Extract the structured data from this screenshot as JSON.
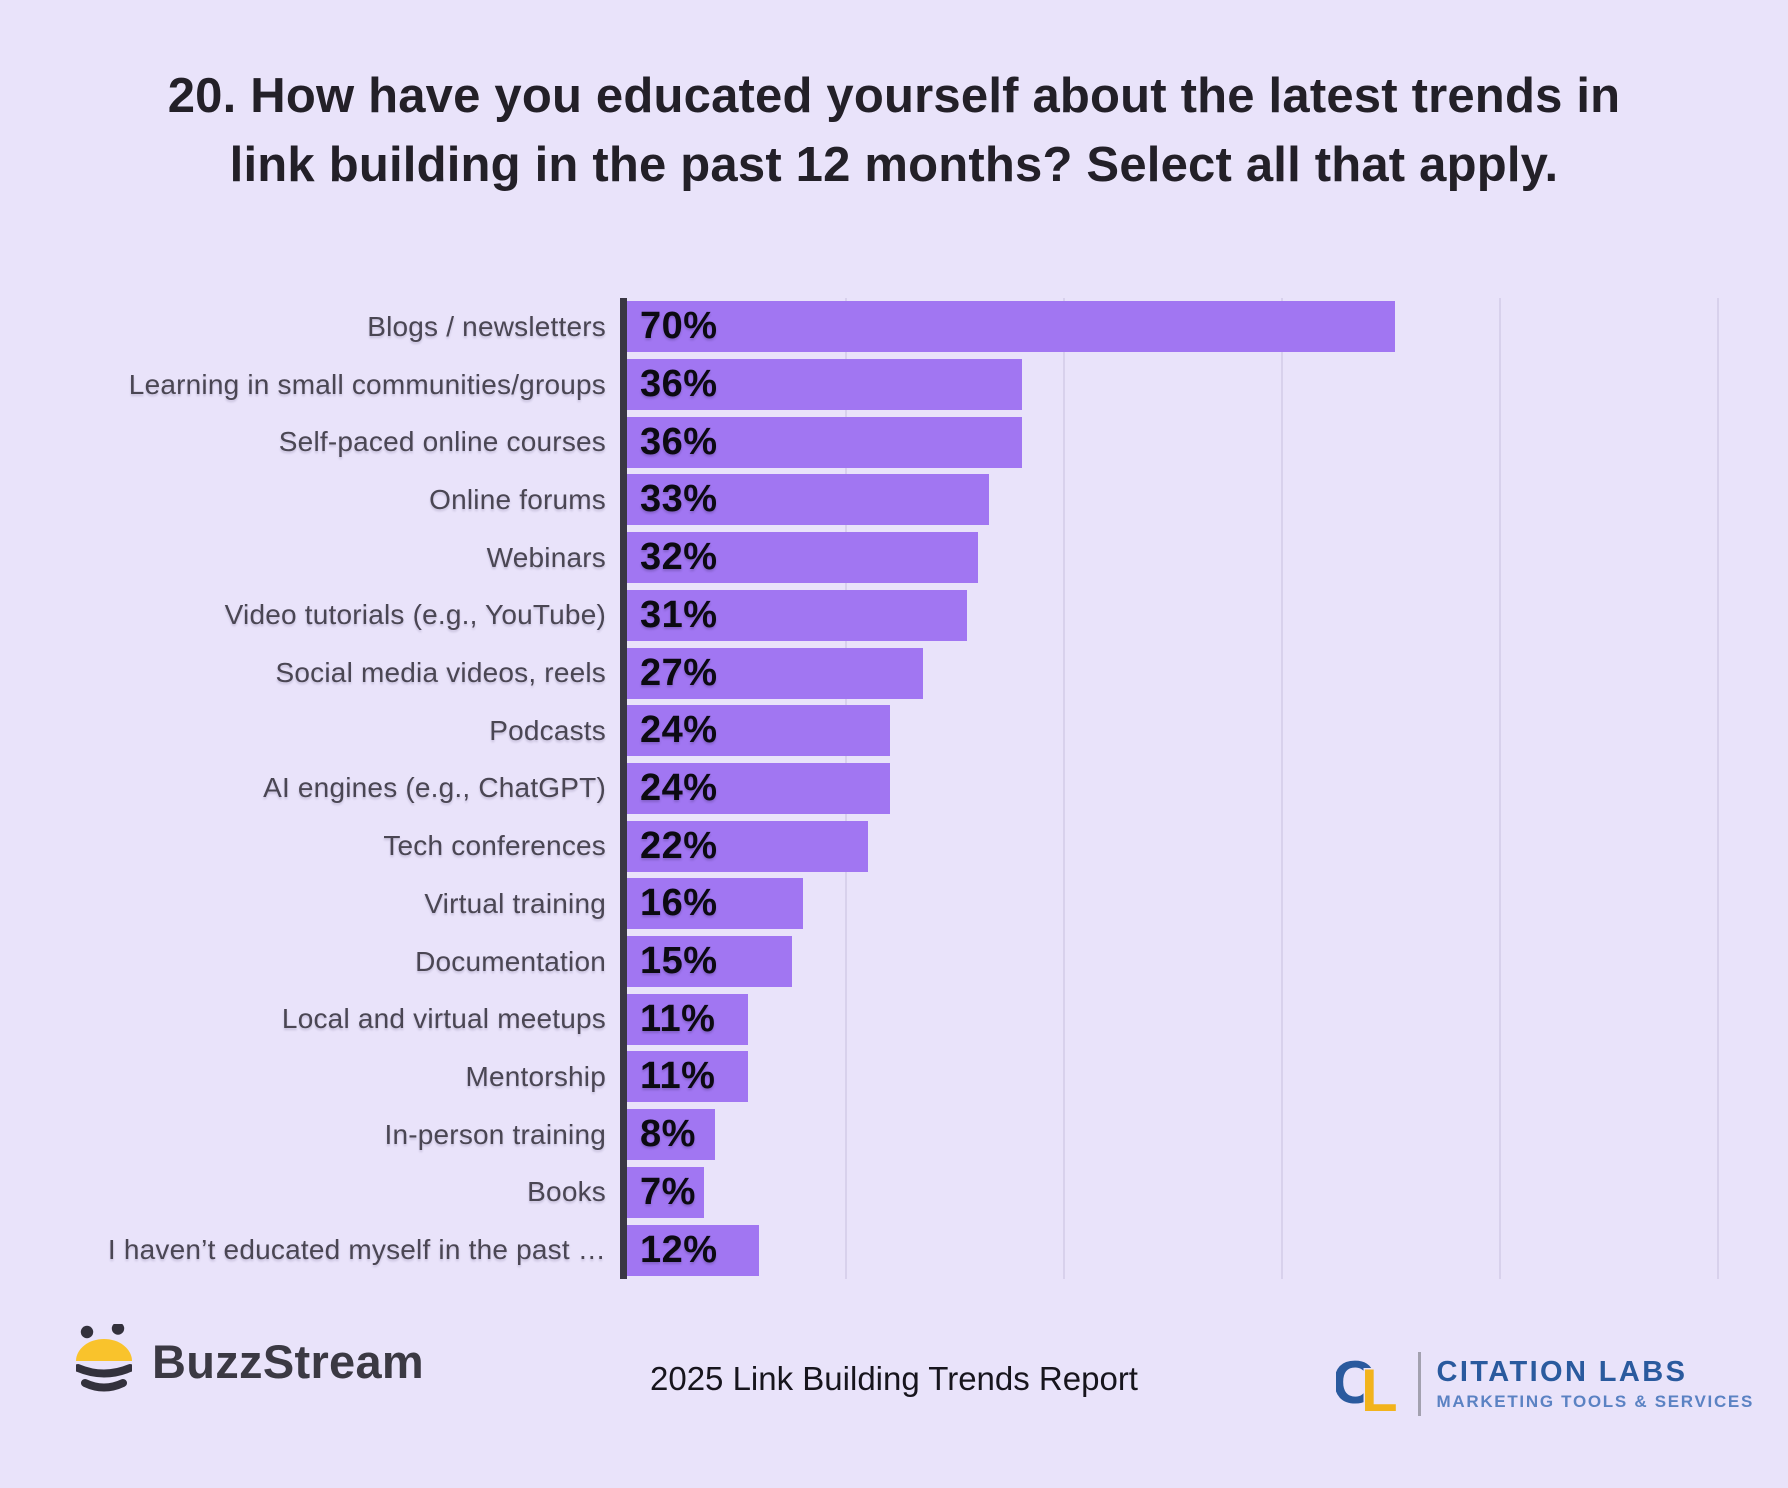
{
  "title": "20. How have you educated yourself about the latest trends in\nlink building in the past 12 months? Select all that apply.",
  "chart_data": {
    "type": "bar",
    "orientation": "horizontal",
    "title": "20. How have you educated yourself about the latest trends in link building in the past 12 months? Select all that apply.",
    "categories": [
      "Blogs / newsletters",
      "Learning in small communities/groups",
      "Self-paced online courses",
      "Online forums",
      "Webinars",
      "Video tutorials (e.g., YouTube)",
      "Social media videos, reels",
      "Podcasts",
      "AI engines (e.g., ChatGPT)",
      "Tech conferences",
      "Virtual training",
      "Documentation",
      "Local and virtual meetups",
      "Mentorship",
      "In-person training",
      "Books",
      "I haven’t educated myself in the past …"
    ],
    "values": [
      70,
      36,
      36,
      33,
      32,
      31,
      27,
      24,
      24,
      22,
      16,
      15,
      11,
      11,
      8,
      7,
      12
    ],
    "value_suffix": "%",
    "xlabel": "",
    "ylabel": "",
    "xlim": [
      0,
      104
    ],
    "gridlines": [
      20,
      40,
      60,
      80,
      100
    ],
    "grid": true,
    "legend": false,
    "data_labels": "inside-start"
  },
  "footer": {
    "buzzstream_label": "BuzzStream",
    "report_label": "2025 Link Building Trends Report",
    "citation_labs": {
      "mark": "CL",
      "name": "CITATION LABS",
      "tagline": "MARKETING TOOLS & SERVICES"
    }
  },
  "icons": {
    "bee_icon": "bee-logo",
    "cl_mark_icon": "citation-labs-monogram"
  },
  "colors": {
    "background": "#e9e3fa",
    "bar": "#a176f2",
    "axis": "#3a3744",
    "gridline": "#d8d1ec",
    "title_text": "#232028",
    "label_text": "#4a4653",
    "value_text": "#0c0a12",
    "footer_text": "#17151d",
    "buzzstream_text": "#3b3943",
    "bee_yellow": "#f9c32c",
    "bee_dark": "#33313c",
    "citation_blue": "#2a5a9e",
    "citation_gold": "#f2b31c",
    "citation_tagline": "#5b82c3",
    "divider": "#a3a1af"
  }
}
